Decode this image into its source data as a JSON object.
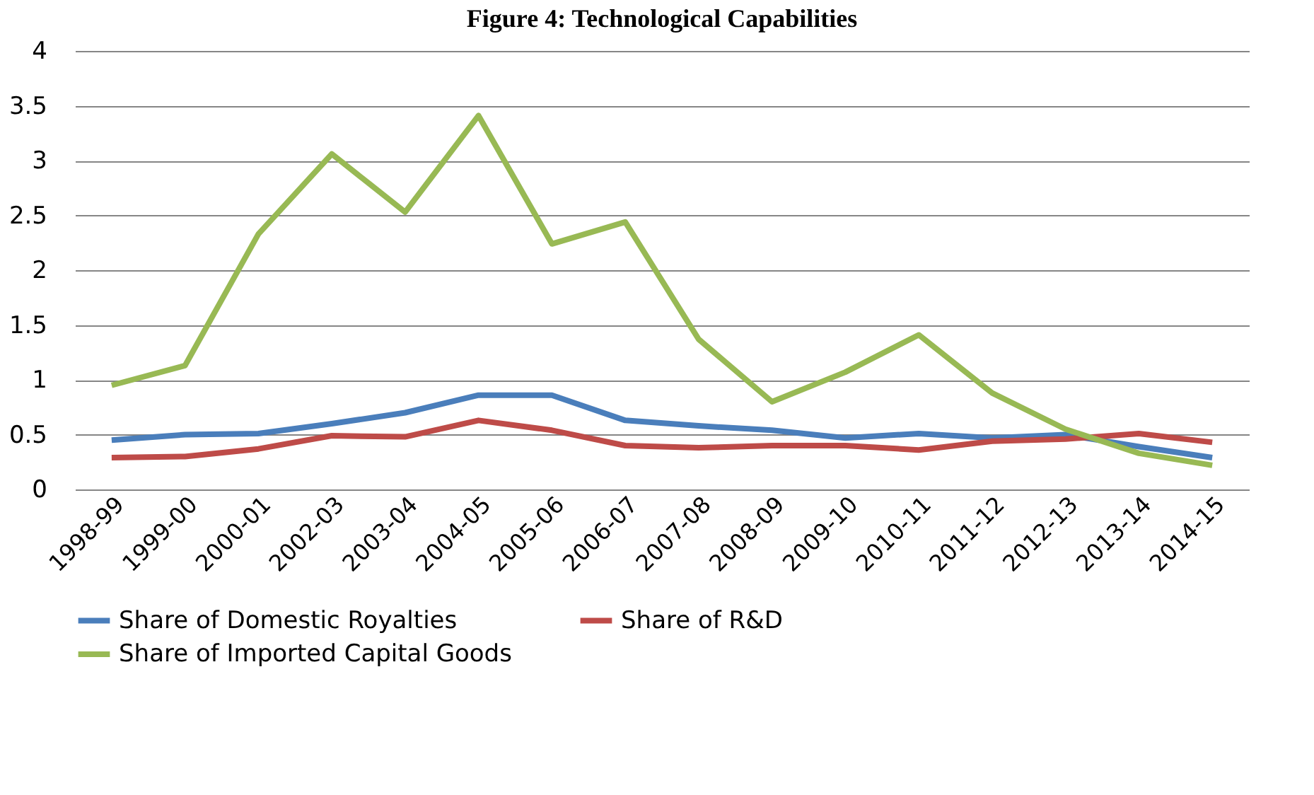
{
  "chart_data": {
    "type": "line",
    "title": "Figure 4: Technological Capabilities",
    "categories": [
      "1998-99",
      "1999-00",
      "2000-01",
      "2002-03",
      "2003-04",
      "2004-05",
      "2005-06",
      "2006-07",
      "2007-08",
      "2008-09",
      "2009-10",
      "2010-11",
      "2011-12",
      "2012-13",
      "2013-14",
      "2014-15"
    ],
    "series": [
      {
        "name": "Share of Domestic Royalties",
        "color": "#4a7ebb",
        "values": [
          0.45,
          0.5,
          0.51,
          0.6,
          0.7,
          0.86,
          0.86,
          0.63,
          0.58,
          0.54,
          0.47,
          0.51,
          0.47,
          0.5,
          0.39,
          0.29
        ]
      },
      {
        "name": "Share of R&D",
        "color": "#be4b48",
        "values": [
          0.29,
          0.3,
          0.37,
          0.49,
          0.48,
          0.63,
          0.54,
          0.4,
          0.38,
          0.4,
          0.4,
          0.36,
          0.44,
          0.46,
          0.51,
          0.43
        ]
      },
      {
        "name": "Share of Imported Capital Goods",
        "color": "#98b954",
        "values": [
          0.95,
          1.13,
          2.33,
          3.06,
          2.53,
          3.41,
          2.24,
          2.44,
          1.37,
          0.8,
          1.07,
          1.41,
          0.88,
          0.55,
          0.33,
          0.22
        ]
      }
    ],
    "ylim": [
      0,
      4
    ],
    "yticks": [
      0,
      0.5,
      1,
      1.5,
      2,
      2.5,
      3,
      3.5,
      4
    ],
    "grid": "y",
    "legend": "bottom",
    "marker": "none",
    "line_style": "solid"
  }
}
